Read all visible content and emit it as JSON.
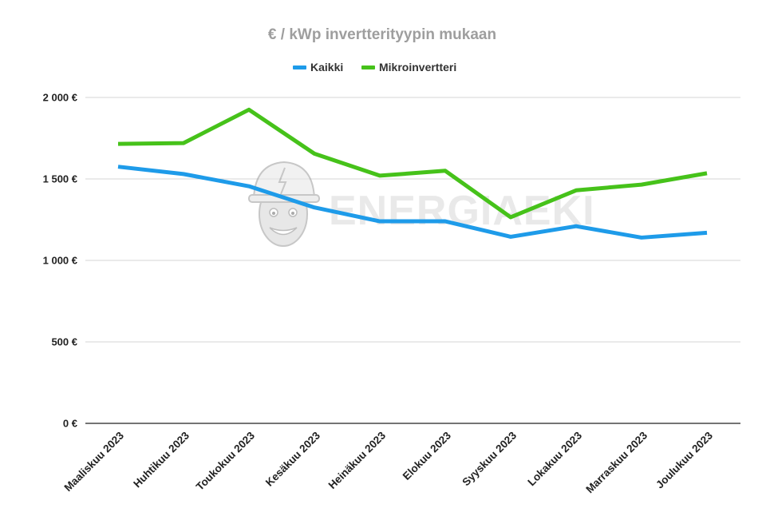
{
  "chart_data": {
    "type": "line",
    "title": "€ / kWp invertterityypin mukaan",
    "xlabel": "",
    "ylabel": "",
    "categories": [
      "Maaliskuu 2023",
      "Huhtikuu 2023",
      "Toukokuu 2023",
      "Kesäkuu 2023",
      "Heinäkuu 2023",
      "Elokuu 2023",
      "Syyskuu 2023",
      "Lokakuu 2023",
      "Marraskuu 2023",
      "Joulukuu 2023"
    ],
    "series": [
      {
        "name": "Kaikki",
        "color": "#1e9be9",
        "values": [
          1575,
          1530,
          1455,
          1325,
          1240,
          1240,
          1145,
          1210,
          1140,
          1170
        ]
      },
      {
        "name": "Mikroinvertteri",
        "color": "#46c21a",
        "values": [
          1715,
          1720,
          1925,
          1655,
          1520,
          1550,
          1265,
          1430,
          1465,
          1535
        ]
      }
    ],
    "ylim": [
      0,
      2000
    ],
    "yticks": [
      0,
      500,
      1000,
      1500,
      2000
    ],
    "ytick_labels": [
      "0 €",
      "500 €",
      "1 000 €",
      "1 500 €",
      "2 000 €"
    ],
    "grid": true,
    "legend_position": "top-center"
  },
  "watermark": {
    "text": "ENERGIAEKI",
    "icon": "mascot-face-icon"
  }
}
